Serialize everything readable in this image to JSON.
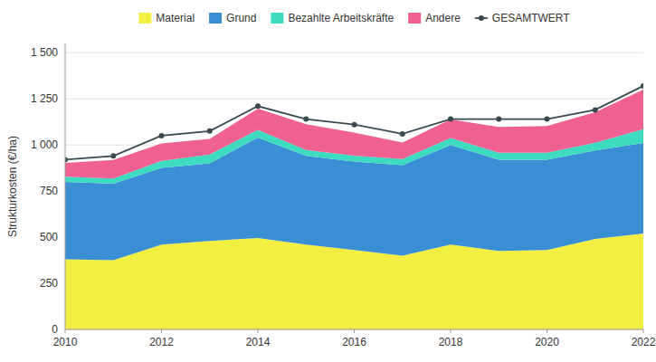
{
  "chart_data": {
    "type": "area",
    "stacked": true,
    "x": [
      2010,
      2011,
      2012,
      2013,
      2014,
      2015,
      2016,
      2017,
      2018,
      2019,
      2020,
      2021,
      2022
    ],
    "series": [
      {
        "name": "Material",
        "type": "area",
        "color": "#f2ef42",
        "values": [
          380,
          375,
          460,
          480,
          495,
          460,
          430,
          400,
          460,
          425,
          430,
          490,
          520
        ]
      },
      {
        "name": "Grund",
        "type": "area",
        "color": "#3a8fd4",
        "values": [
          420,
          415,
          415,
          420,
          545,
          480,
          480,
          490,
          540,
          495,
          490,
          480,
          490
        ]
      },
      {
        "name": "Bezahlte Arbeitskräfte",
        "type": "area",
        "color": "#3ddbc0",
        "values": [
          28,
          28,
          38,
          48,
          42,
          32,
          32,
          33,
          38,
          38,
          38,
          42,
          75
        ]
      },
      {
        "name": "Andere",
        "type": "area",
        "color": "#f06090",
        "values": [
          75,
          100,
          95,
          85,
          115,
          140,
          125,
          90,
          100,
          140,
          145,
          165,
          215
        ]
      },
      {
        "name": "GESAMTWERT",
        "type": "line",
        "marker": "circle",
        "color": "#3a4a50",
        "values": [
          920,
          940,
          1050,
          1075,
          1210,
          1140,
          1110,
          1060,
          1140,
          1140,
          1140,
          1190,
          1320
        ]
      }
    ],
    "y_label": "Strukturkosten (€/ha)",
    "xlim": [
      2010,
      2022
    ],
    "xticks": [
      2010,
      2012,
      2014,
      2016,
      2018,
      2020,
      2022
    ],
    "ylim": [
      0,
      1550
    ],
    "yticks": [
      0,
      250,
      500,
      750,
      {
        "value": 1000,
        "label": "1 000"
      },
      {
        "value": 1250,
        "label": "1 250"
      },
      {
        "value": 1500,
        "label": "1 500"
      }
    ],
    "grid": true,
    "legend": "top"
  }
}
